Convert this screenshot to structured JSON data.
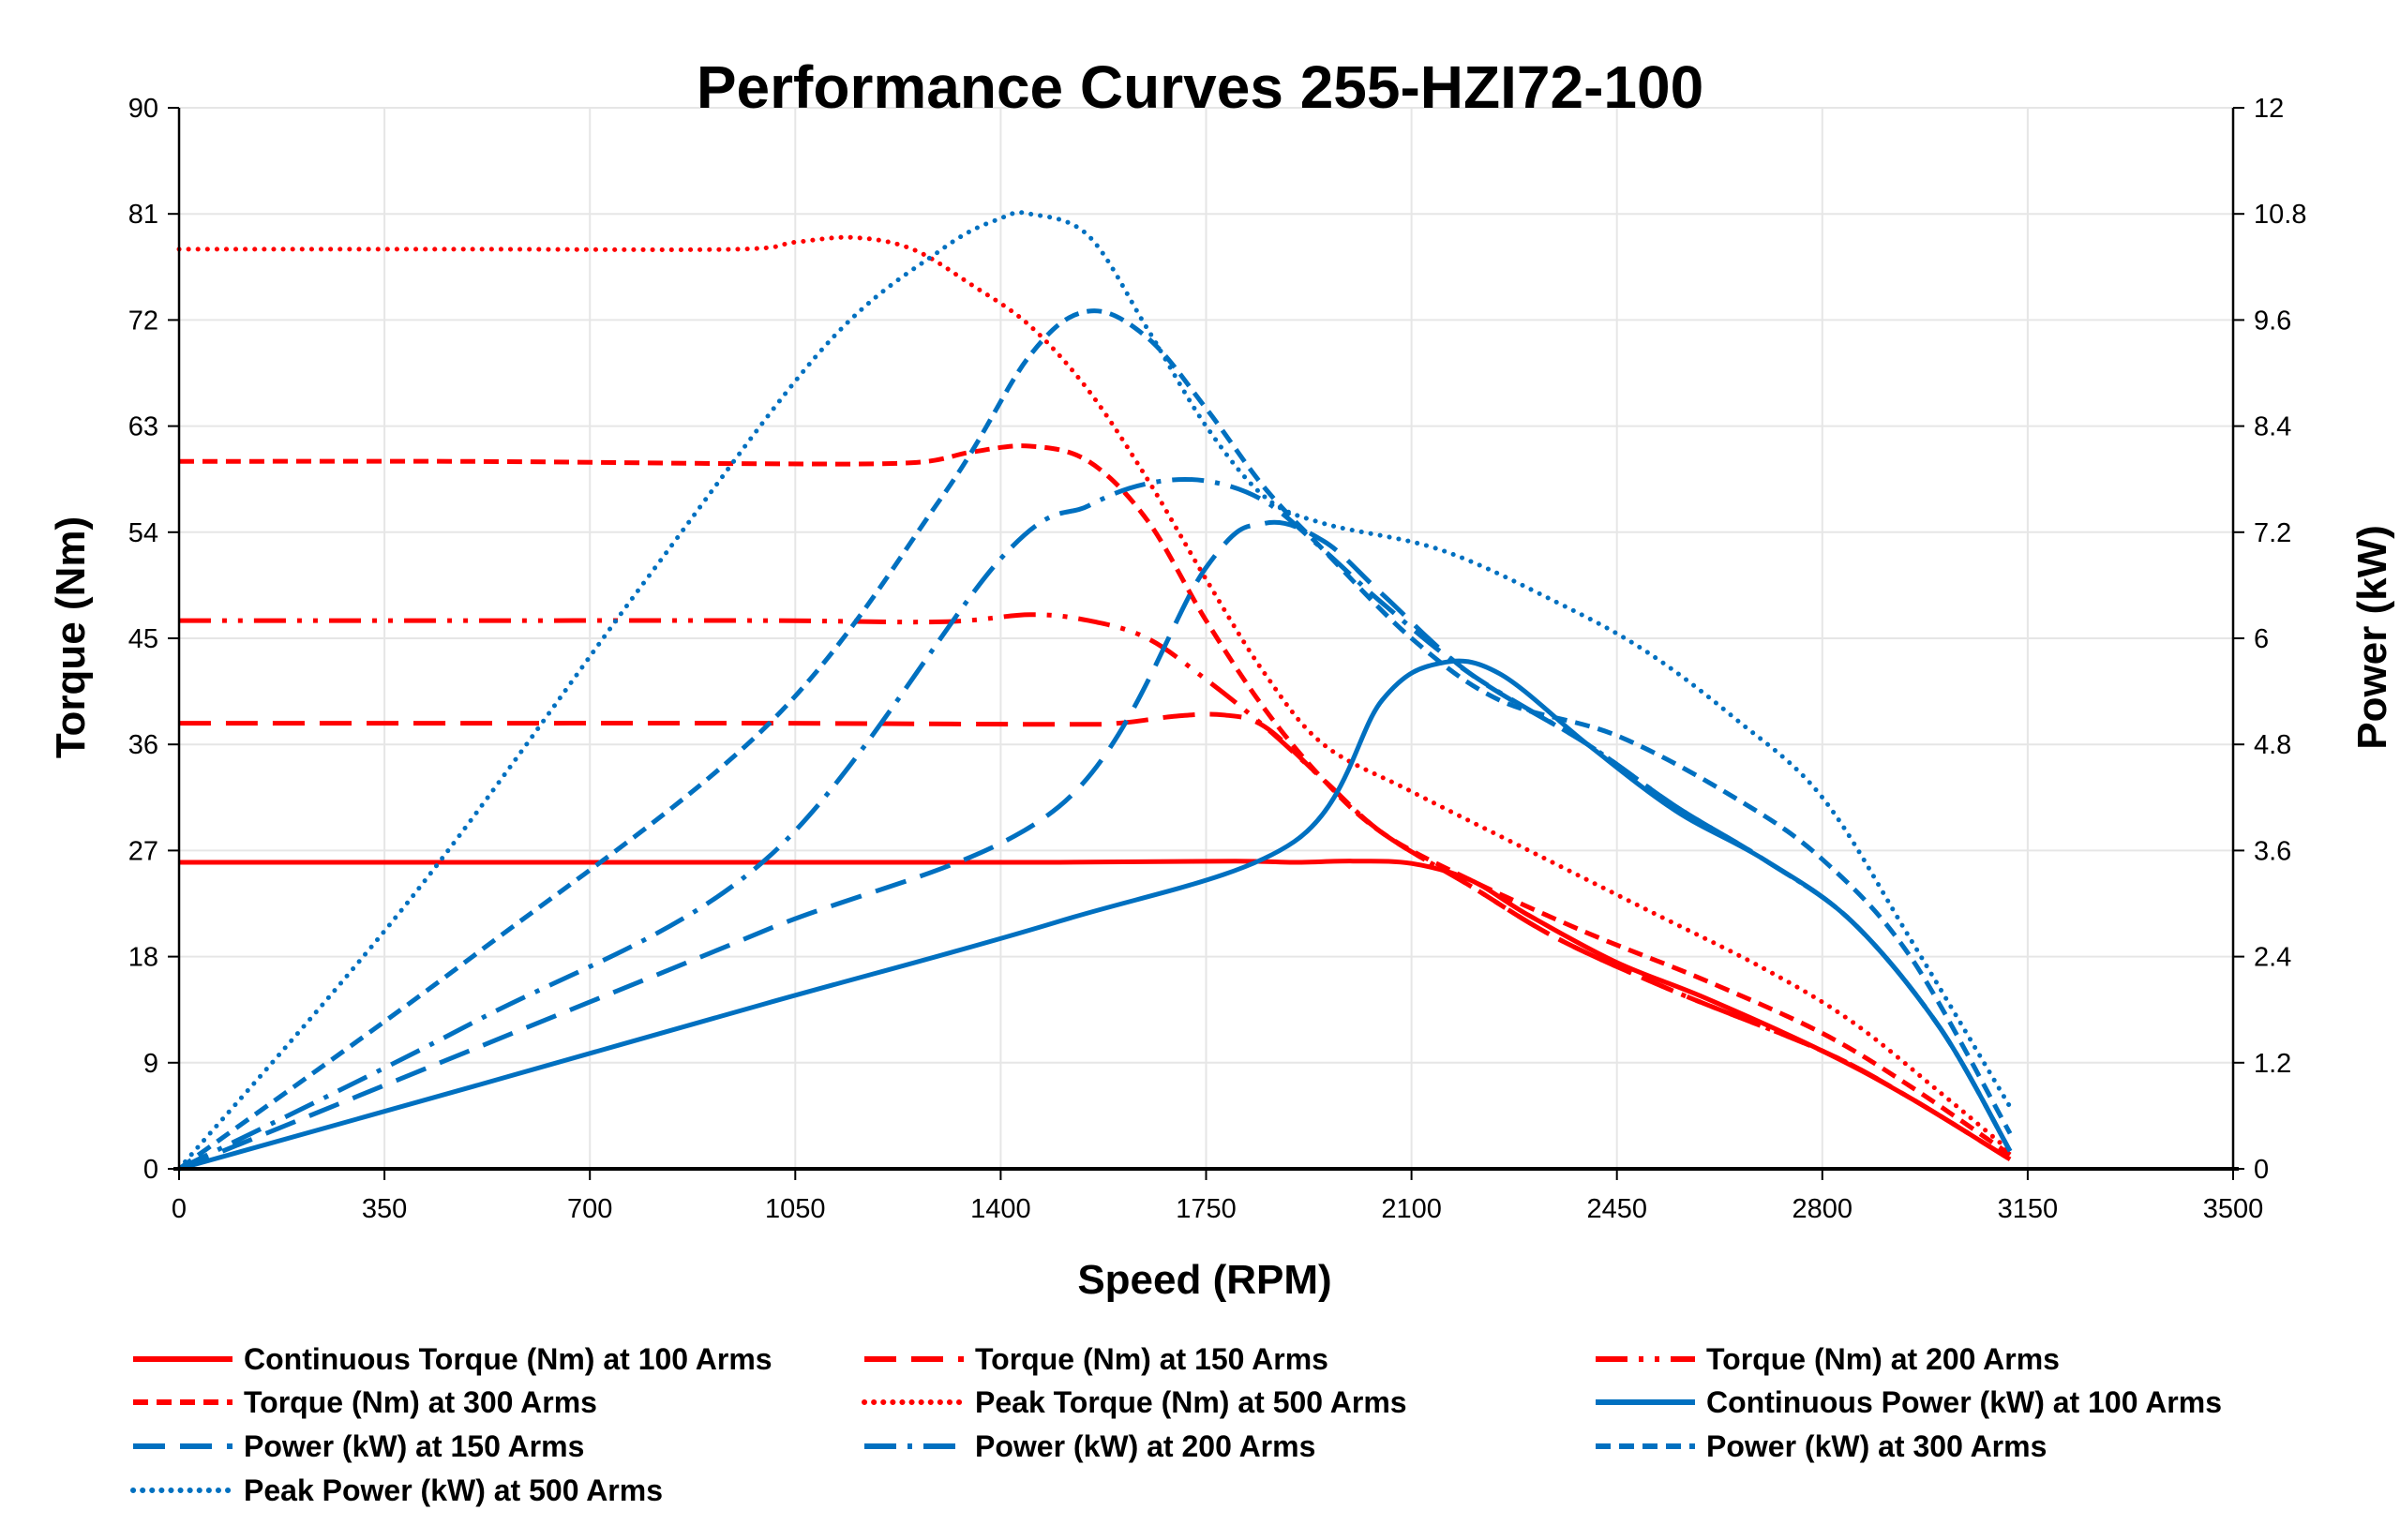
{
  "chart_data": {
    "type": "line",
    "title": "Performance Curves 255-HZI72-100",
    "xlabel": "Speed (RPM)",
    "ylabel": "Torque (Nm)",
    "y2label": "Power (kW)",
    "xlim": [
      0,
      3500
    ],
    "ylim": [
      0,
      90
    ],
    "y2lim": [
      0,
      12
    ],
    "xticks": [
      "0",
      "350",
      "700",
      "1050",
      "1400",
      "1750",
      "2100",
      "2450",
      "2800",
      "3150",
      "3500"
    ],
    "yticks": [
      "0",
      "9",
      "18",
      "27",
      "36",
      "45",
      "54",
      "63",
      "72",
      "81",
      "90"
    ],
    "y2ticks": [
      "0",
      "1.2",
      "2.4",
      "3.6",
      "4.8",
      "6",
      "7.2",
      "8.4",
      "9.6",
      "10.8",
      "12"
    ],
    "grid": true,
    "legend_placement": "bottom",
    "colors": {
      "torque": "#FF0000",
      "power": "#0070C0"
    },
    "series": [
      {
        "name": "Continuous Torque (Nm) at 100 Arms",
        "axis": "left",
        "color": "#FF0000",
        "style": "solid",
        "x": [
          0,
          500,
          1000,
          1500,
          1800,
          1900,
          2000,
          2100,
          2200,
          2300,
          2450,
          2600,
          2800,
          2950,
          3120
        ],
        "y": [
          26,
          26,
          26,
          26,
          26.1,
          26,
          26.1,
          25.9,
          24.5,
          21.5,
          17.5,
          14.5,
          10,
          6,
          0.8
        ]
      },
      {
        "name": "Torque (Nm) at 150 Arms",
        "axis": "left",
        "color": "#FF0000",
        "style": "longdash",
        "x": [
          0,
          500,
          1000,
          1500,
          1600,
          1700,
          1780,
          1850,
          1950,
          2050,
          2200,
          2350,
          2550,
          2800,
          2950,
          3120
        ],
        "y": [
          37.8,
          37.8,
          37.8,
          37.7,
          37.8,
          38.4,
          38.5,
          37.5,
          33,
          28.5,
          24,
          19.5,
          15,
          10,
          6,
          0.8
        ]
      },
      {
        "name": "Torque (Nm) at 200 Arms",
        "axis": "left",
        "color": "#FF0000",
        "style": "longdashdotdot",
        "x": [
          0,
          500,
          1000,
          1300,
          1450,
          1550,
          1650,
          1750,
          1850,
          1950,
          2050,
          2200,
          2350,
          2550,
          2800,
          2950,
          3120
        ],
        "y": [
          46.5,
          46.5,
          46.5,
          46.4,
          47,
          46.5,
          45,
          41.5,
          37.5,
          33,
          28.5,
          24,
          19.5,
          15,
          10,
          6,
          0.8
        ]
      },
      {
        "name": "Torque (Nm) at 300 Arms",
        "axis": "left",
        "color": "#FF0000",
        "style": "dash",
        "x": [
          0,
          500,
          1000,
          1250,
          1350,
          1450,
          1550,
          1650,
          1750,
          1850,
          1950,
          2050,
          2200,
          2400,
          2600,
          2800,
          2950,
          3120
        ],
        "y": [
          60,
          60,
          59.8,
          59.9,
          60.8,
          61.3,
          60,
          55,
          46.5,
          39,
          33,
          28.5,
          24.5,
          20,
          16,
          11.5,
          7,
          1.2
        ]
      },
      {
        "name": "Peak Torque (Nm) at 500 Arms",
        "axis": "left",
        "color": "#FF0000",
        "style": "dot",
        "x": [
          0,
          500,
          950,
          1050,
          1150,
          1250,
          1350,
          1450,
          1550,
          1650,
          1750,
          1850,
          1950,
          2100,
          2300,
          2500,
          2700,
          2850,
          3000,
          3120
        ],
        "y": [
          78,
          78,
          78,
          78.6,
          79,
          78,
          75,
          71.5,
          66,
          58.5,
          50,
          42,
          36,
          32,
          27,
          22,
          17,
          12.5,
          6.5,
          1.5
        ]
      },
      {
        "name": "Continuous Power (kW) at 100 Arms",
        "axis": "right",
        "color": "#0070C0",
        "style": "solid",
        "x": [
          0,
          500,
          1000,
          1500,
          1900,
          2050,
          2150,
          2250,
          2400,
          2550,
          2700,
          2850,
          3000,
          3120
        ],
        "y": [
          0,
          0.93,
          1.87,
          2.8,
          3.7,
          5.3,
          5.72,
          5.6,
          4.8,
          4.05,
          3.5,
          2.8,
          1.6,
          0.2
        ]
      },
      {
        "name": "Power (kW) at 150 Arms",
        "axis": "right",
        "color": "#0070C0",
        "style": "longdash",
        "x": [
          0,
          500,
          1000,
          1500,
          1750,
          1850,
          1950,
          2050,
          2200,
          2400,
          2550,
          2700,
          2850,
          3000,
          3120
        ],
        "y": [
          0,
          1.35,
          2.7,
          4.1,
          6.8,
          7.3,
          7.1,
          6.5,
          5.6,
          4.8,
          4.1,
          3.5,
          2.8,
          1.6,
          0.2
        ]
      },
      {
        "name": "Power (kW) at 200 Arms",
        "axis": "right",
        "color": "#0070C0",
        "style": "longdashdot",
        "x": [
          0,
          500,
          1000,
          1400,
          1550,
          1650,
          1750,
          1850,
          1950,
          2050,
          2200,
          2400,
          2550,
          2700,
          2850,
          3000,
          3120
        ],
        "y": [
          0,
          1.65,
          3.5,
          6.9,
          7.5,
          7.75,
          7.78,
          7.55,
          7,
          6.4,
          5.6,
          4.8,
          4.1,
          3.5,
          2.8,
          1.6,
          0.2
        ]
      },
      {
        "name": "Power (kW) at 300 Arms",
        "axis": "right",
        "color": "#0070C0",
        "style": "dash",
        "x": [
          0,
          500,
          1000,
          1300,
          1450,
          1550,
          1650,
          1750,
          1850,
          1950,
          2100,
          2250,
          2450,
          2650,
          2800,
          2950,
          3120
        ],
        "y": [
          0,
          2.4,
          5,
          7.6,
          9.2,
          9.7,
          9.4,
          8.6,
          7.7,
          7,
          6,
          5.3,
          4.9,
          4.2,
          3.5,
          2.4,
          0.4
        ]
      },
      {
        "name": "Peak Power (kW) at 500 Arms",
        "axis": "right",
        "color": "#0070C0",
        "style": "dot",
        "x": [
          0,
          400,
          800,
          1100,
          1300,
          1400,
          1450,
          1550,
          1650,
          1750,
          1850,
          1950,
          2150,
          2350,
          2500,
          2650,
          2800,
          2950,
          3120
        ],
        "y": [
          0,
          3.1,
          6.7,
          9.3,
          10.4,
          10.75,
          10.8,
          10.55,
          9.5,
          8.4,
          7.6,
          7.3,
          7,
          6.4,
          5.85,
          5.1,
          4.2,
          2.6,
          0.7
        ]
      }
    ]
  }
}
